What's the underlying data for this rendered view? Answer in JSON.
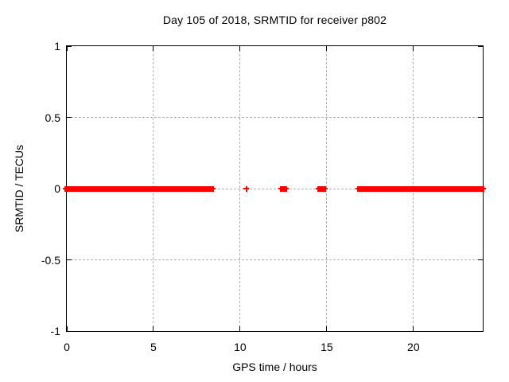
{
  "figure": {
    "kind": "gnuplot-style static plot image"
  },
  "chart_data": {
    "type": "scatter",
    "title": "Day 105 of 2018, SRMTID for receiver p802",
    "xlabel": "GPS time / hours",
    "ylabel": "SRMTID / TECUs",
    "xlim": [
      0,
      24
    ],
    "ylim": [
      -1,
      1
    ],
    "xticks": [
      0,
      5,
      10,
      15,
      20
    ],
    "xtick_labels": [
      "0",
      "5",
      "10",
      "15",
      "20"
    ],
    "yticks": [
      1,
      0.5,
      0,
      -0.5,
      -1
    ],
    "ytick_labels": [
      "1",
      "0.5",
      "0",
      "-0.5",
      "-1"
    ],
    "grid": true,
    "legend": false,
    "series": [
      {
        "name": "SRMTID",
        "marker": "plus",
        "color": "#ff0000",
        "y_value": 0,
        "segments_hours": [
          {
            "start": 0.0,
            "end": 8.33
          },
          {
            "start": 10.36,
            "end": 10.36
          },
          {
            "start": 12.45,
            "end": 12.58
          },
          {
            "start": 14.58,
            "end": 14.82
          },
          {
            "start": 16.87,
            "end": 22.95
          },
          {
            "start": 23.09,
            "end": 23.95
          }
        ]
      }
    ]
  },
  "colors": {
    "data_red": "#ff0000",
    "grid_gray": "#b0b0b0",
    "axis_black": "#000000",
    "background": "#ffffff",
    "text": "#000000"
  }
}
